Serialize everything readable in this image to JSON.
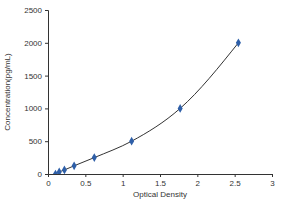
{
  "chart_data": {
    "type": "line",
    "x_label": "Optical Density",
    "y_label": "Concentration(pg/mL)",
    "x": [
      0.1,
      0.15,
      0.22,
      0.35,
      0.62,
      1.12,
      1.77,
      2.55
    ],
    "values": [
      0,
      31,
      62,
      125,
      250,
      500,
      1000,
      2000
    ],
    "color": "#2e5fa8",
    "marker": "diamond",
    "xlim": [
      0,
      3
    ],
    "xticks": [
      0,
      0.5,
      1,
      1.5,
      2,
      2.5,
      3
    ],
    "ylim": [
      0,
      2500
    ],
    "yticks": [
      0,
      500,
      1000,
      1500,
      2000,
      2500
    ],
    "grid": false
  }
}
